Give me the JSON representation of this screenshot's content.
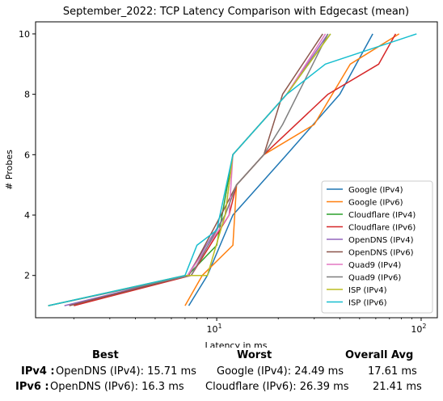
{
  "chart_data": {
    "type": "line",
    "title": "September_2022: TCP Latency Comparison with Edgecast (mean)",
    "xlabel": "Latency in ms",
    "ylabel": "# Probes",
    "xscale": "log",
    "xlim": [
      1.3,
      120
    ],
    "ylim": [
      0.6,
      10.4
    ],
    "xticks": [
      {
        "value": 10,
        "label": "10^1"
      },
      {
        "value": 100,
        "label": "10^2"
      }
    ],
    "yticks": [
      2,
      4,
      6,
      8,
      10
    ],
    "legend_position": "lower-right",
    "grid": false,
    "series": [
      {
        "name": "Google (IPv4)",
        "color": "#1f77b4",
        "x": [
          7.3,
          9.0,
          12.0,
          22.0,
          40.0,
          58.0
        ],
        "y": [
          1,
          2,
          4,
          6,
          8,
          10
        ]
      },
      {
        "name": "Google (IPv6)",
        "color": "#ff7f0e",
        "x": [
          7.0,
          8.5,
          12.0,
          12.5,
          17.0,
          30.0,
          45.0,
          78.0
        ],
        "y": [
          1,
          2,
          3,
          5,
          6,
          7,
          9,
          10
        ]
      },
      {
        "name": "Cloudflare (IPv4)",
        "color": "#2ca02c",
        "x": [
          1.5,
          7.2,
          10.0,
          12.0,
          22.0,
          36.0
        ],
        "y": [
          1,
          2,
          3,
          6,
          8,
          10
        ]
      },
      {
        "name": "Cloudflare (IPv6)",
        "color": "#d62728",
        "x": [
          2.0,
          7.5,
          11.5,
          12.5,
          17.0,
          35.0,
          62.0,
          75.0
        ],
        "y": [
          1,
          2,
          4,
          5,
          6,
          8,
          9,
          10
        ]
      },
      {
        "name": "OpenDNS (IPv4)",
        "color": "#9467bd",
        "x": [
          1.8,
          7.2,
          11.0,
          12.0,
          22.0,
          35.0
        ],
        "y": [
          1,
          2,
          4,
          6,
          8,
          10
        ]
      },
      {
        "name": "OpenDNS (IPv6)",
        "color": "#8c564b",
        "x": [
          1.9,
          7.3,
          10.5,
          12.5,
          17.0,
          21.0,
          33.0
        ],
        "y": [
          1,
          2,
          4,
          5,
          6,
          8,
          10
        ]
      },
      {
        "name": "Quad9 (IPv4)",
        "color": "#e377c2",
        "x": [
          1.5,
          7.2,
          11.5,
          12.0,
          22.0,
          34.0
        ],
        "y": [
          1,
          2,
          4,
          6,
          8,
          10
        ]
      },
      {
        "name": "Quad9 (IPv6)",
        "color": "#7f7f7f",
        "x": [
          1.5,
          7.5,
          11.0,
          12.5,
          17.0,
          21.0,
          35.0
        ],
        "y": [
          1,
          2,
          4,
          5,
          6,
          7,
          10
        ]
      },
      {
        "name": "ISP (IPv4)",
        "color": "#bcbd22",
        "x": [
          1.5,
          7.0,
          9.0,
          11.0,
          12.0,
          22.0,
          36.0
        ],
        "y": [
          1,
          2,
          2,
          4,
          6,
          8,
          10
        ]
      },
      {
        "name": "ISP (IPv6)",
        "color": "#17becf",
        "x": [
          1.5,
          7.0,
          8.0,
          10.0,
          12.0,
          22.0,
          34.0,
          95.0
        ],
        "y": [
          1,
          2,
          3,
          3.5,
          6,
          8,
          9,
          10
        ]
      }
    ]
  },
  "summary": {
    "headers": {
      "best": "Best",
      "worst": "Worst",
      "avg": "Overall Avg"
    },
    "rows": [
      {
        "label": "IPv4 :",
        "best": "OpenDNS (IPv4): 15.71 ms",
        "worst": "Google (IPv4): 24.49 ms",
        "avg": "17.61 ms"
      },
      {
        "label": "IPv6 :",
        "best": "OpenDNS (IPv6): 16.3 ms",
        "worst": "Cloudflare (IPv6): 26.39 ms",
        "avg": "21.41 ms"
      }
    ]
  }
}
